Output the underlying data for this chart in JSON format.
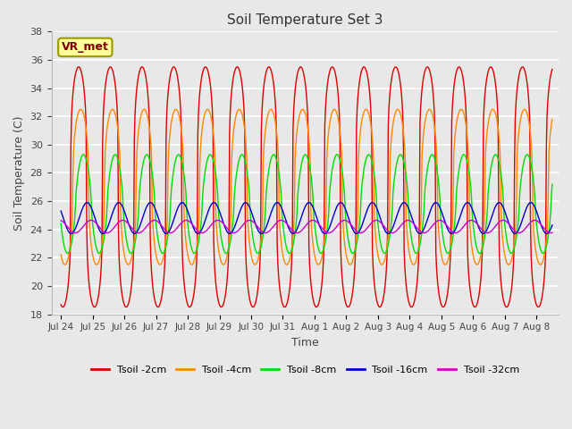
{
  "title": "Soil Temperature Set 3",
  "xlabel": "Time",
  "ylabel": "Soil Temperature (C)",
  "ylim": [
    18,
    38
  ],
  "yticks": [
    18,
    20,
    22,
    24,
    26,
    28,
    30,
    32,
    34,
    36,
    38
  ],
  "bg_color": "#e8e8e8",
  "annotation_text": "VR_met",
  "annotation_bg": "#ffff99",
  "annotation_border": "#999900",
  "annotation_color": "#7f0000",
  "series_order": [
    "Tsoil -2cm",
    "Tsoil -4cm",
    "Tsoil -8cm",
    "Tsoil -16cm",
    "Tsoil -32cm"
  ],
  "colors": {
    "Tsoil -2cm": "#dd0000",
    "Tsoil -4cm": "#ff8800",
    "Tsoil -8cm": "#00dd00",
    "Tsoil -16cm": "#0000cc",
    "Tsoil -32cm": "#cc00cc"
  },
  "x_tick_labels": [
    "Jul 24",
    "Jul 25",
    "Jul 26",
    "Jul 27",
    "Jul 28",
    "Jul 29",
    "Jul 30",
    "Jul 31",
    "Aug 1",
    "Aug 2",
    "Aug 3",
    "Aug 4",
    "Aug 5",
    "Aug 6",
    "Aug 7",
    "Aug 8"
  ],
  "params": {
    "Tsoil -2cm": {
      "mean": 27.0,
      "amp": 8.5,
      "phase": 0.62,
      "sharpness": 3.5,
      "mean_slope": 0.0
    },
    "Tsoil -4cm": {
      "mean": 27.0,
      "amp": 5.5,
      "phase": 0.75,
      "sharpness": 2.5,
      "mean_slope": 0.0
    },
    "Tsoil -8cm": {
      "mean": 25.8,
      "amp": 3.5,
      "phase": 0.92,
      "sharpness": 1.5,
      "mean_slope": 0.0
    },
    "Tsoil -16cm": {
      "mean": 24.8,
      "amp": 1.1,
      "phase": 1.15,
      "sharpness": 1.0,
      "mean_slope": 0.0
    },
    "Tsoil -32cm": {
      "mean": 24.2,
      "amp": 0.45,
      "phase": 1.4,
      "sharpness": 1.0,
      "mean_slope": 0.0
    }
  },
  "n_points": 744,
  "n_days": 15.5,
  "lw": 1.0
}
